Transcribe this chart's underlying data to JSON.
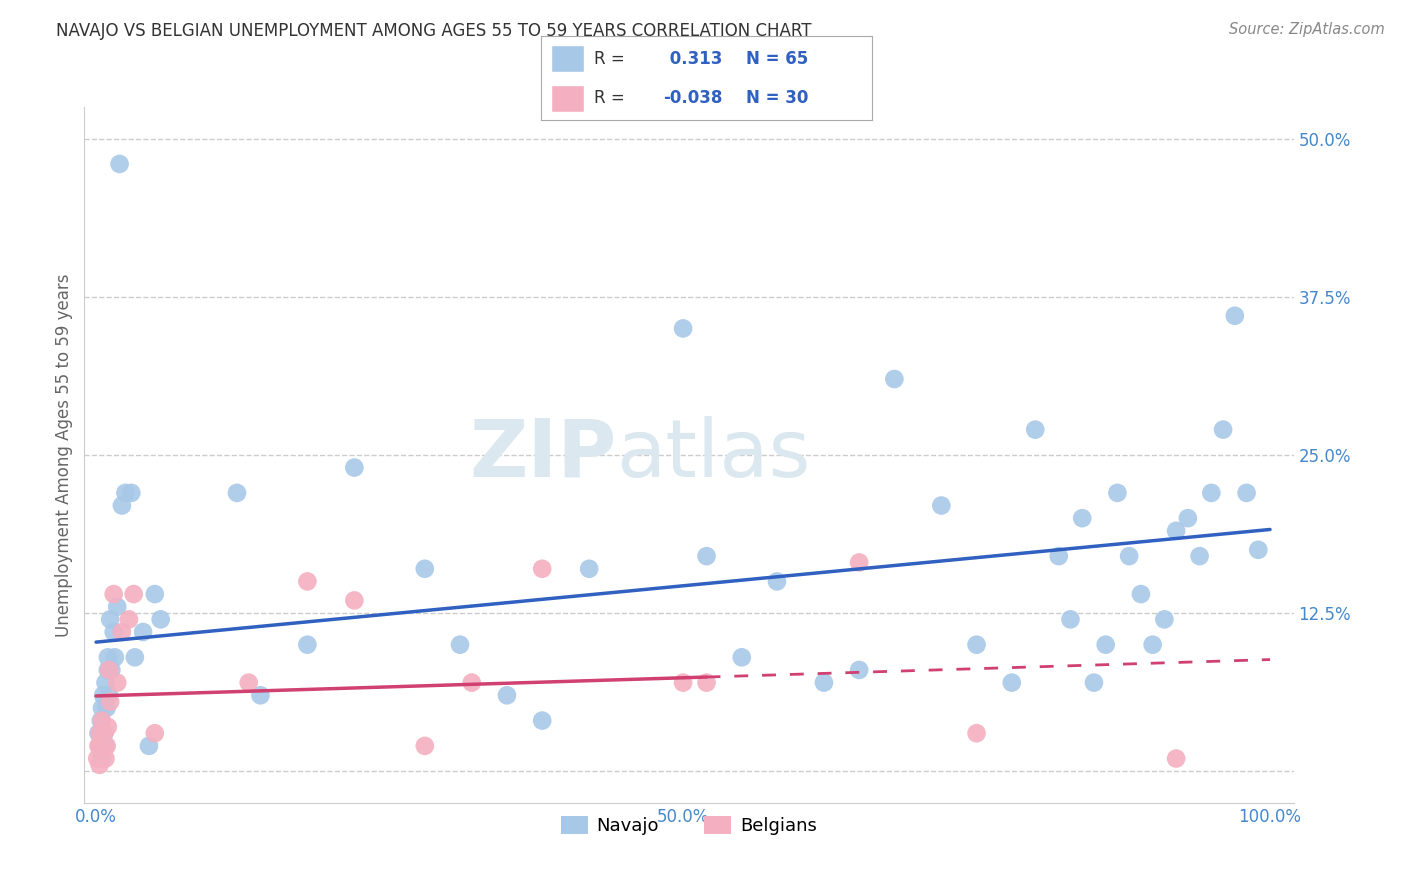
{
  "title": "NAVAJO VS BELGIAN UNEMPLOYMENT AMONG AGES 55 TO 59 YEARS CORRELATION CHART",
  "source": "Source: ZipAtlas.com",
  "ylabel": "Unemployment Among Ages 55 to 59 years",
  "navajo_R": 0.313,
  "navajo_N": 65,
  "belgian_R": -0.038,
  "belgian_N": 30,
  "navajo_color": "#a8c8e8",
  "belgian_color": "#f4b0c0",
  "navajo_line_color": "#3060c0",
  "belgian_line_color": "#d04070",
  "navajo_x": [
    0.002,
    0.003,
    0.004,
    0.005,
    0.005,
    0.006,
    0.007,
    0.008,
    0.008,
    0.009,
    0.01,
    0.01,
    0.011,
    0.012,
    0.013,
    0.015,
    0.016,
    0.018,
    0.02,
    0.022,
    0.025,
    0.03,
    0.033,
    0.04,
    0.045,
    0.05,
    0.055,
    0.12,
    0.14,
    0.18,
    0.22,
    0.28,
    0.31,
    0.35,
    0.38,
    0.42,
    0.5,
    0.52,
    0.55,
    0.58,
    0.62,
    0.65,
    0.68,
    0.72,
    0.75,
    0.78,
    0.8,
    0.82,
    0.83,
    0.84,
    0.85,
    0.86,
    0.87,
    0.88,
    0.89,
    0.9,
    0.91,
    0.92,
    0.93,
    0.94,
    0.95,
    0.96,
    0.97,
    0.98,
    0.99
  ],
  "navajo_y": [
    0.03,
    0.02,
    0.04,
    0.05,
    0.01,
    0.06,
    0.03,
    0.07,
    0.02,
    0.05,
    0.08,
    0.09,
    0.06,
    0.12,
    0.08,
    0.11,
    0.09,
    0.13,
    0.48,
    0.21,
    0.22,
    0.22,
    0.09,
    0.11,
    0.02,
    0.14,
    0.12,
    0.22,
    0.06,
    0.1,
    0.24,
    0.16,
    0.1,
    0.06,
    0.04,
    0.16,
    0.35,
    0.17,
    0.09,
    0.15,
    0.07,
    0.08,
    0.31,
    0.21,
    0.1,
    0.07,
    0.27,
    0.17,
    0.12,
    0.2,
    0.07,
    0.1,
    0.22,
    0.17,
    0.14,
    0.1,
    0.12,
    0.19,
    0.2,
    0.17,
    0.22,
    0.27,
    0.36,
    0.22,
    0.175
  ],
  "belgian_x": [
    0.001,
    0.002,
    0.003,
    0.003,
    0.004,
    0.005,
    0.006,
    0.007,
    0.008,
    0.009,
    0.01,
    0.011,
    0.012,
    0.015,
    0.018,
    0.022,
    0.028,
    0.032,
    0.05,
    0.13,
    0.18,
    0.22,
    0.28,
    0.32,
    0.38,
    0.5,
    0.52,
    0.65,
    0.75,
    0.92
  ],
  "belgian_y": [
    0.01,
    0.02,
    0.005,
    0.03,
    0.02,
    0.04,
    0.015,
    0.03,
    0.01,
    0.02,
    0.035,
    0.08,
    0.055,
    0.14,
    0.07,
    0.11,
    0.12,
    0.14,
    0.03,
    0.07,
    0.15,
    0.135,
    0.02,
    0.07,
    0.16,
    0.07,
    0.07,
    0.165,
    0.03,
    0.01
  ],
  "xlim": [
    -0.01,
    1.02
  ],
  "ylim": [
    -0.025,
    0.525
  ],
  "xticks": [
    0.0,
    0.25,
    0.5,
    0.75,
    1.0
  ],
  "xticklabels": [
    "0.0%",
    "",
    "50.0%",
    "",
    "100.0%"
  ],
  "ytick_vals": [
    0.0,
    0.125,
    0.25,
    0.375,
    0.5
  ],
  "ytick_labels": [
    "",
    "12.5%",
    "25.0%",
    "37.5%",
    "50.0%"
  ],
  "background_color": "#ffffff",
  "grid_color": "#cccccc",
  "watermark_zip": "ZIP",
  "watermark_atlas": "atlas",
  "watermark_color": "#dce8f0",
  "legend_navajo": "Navajo",
  "legend_belgian": "Belgians",
  "title_color": "#333333",
  "ylabel_color": "#666666",
  "tick_label_color": "#4488cc",
  "source_color": "#888888"
}
